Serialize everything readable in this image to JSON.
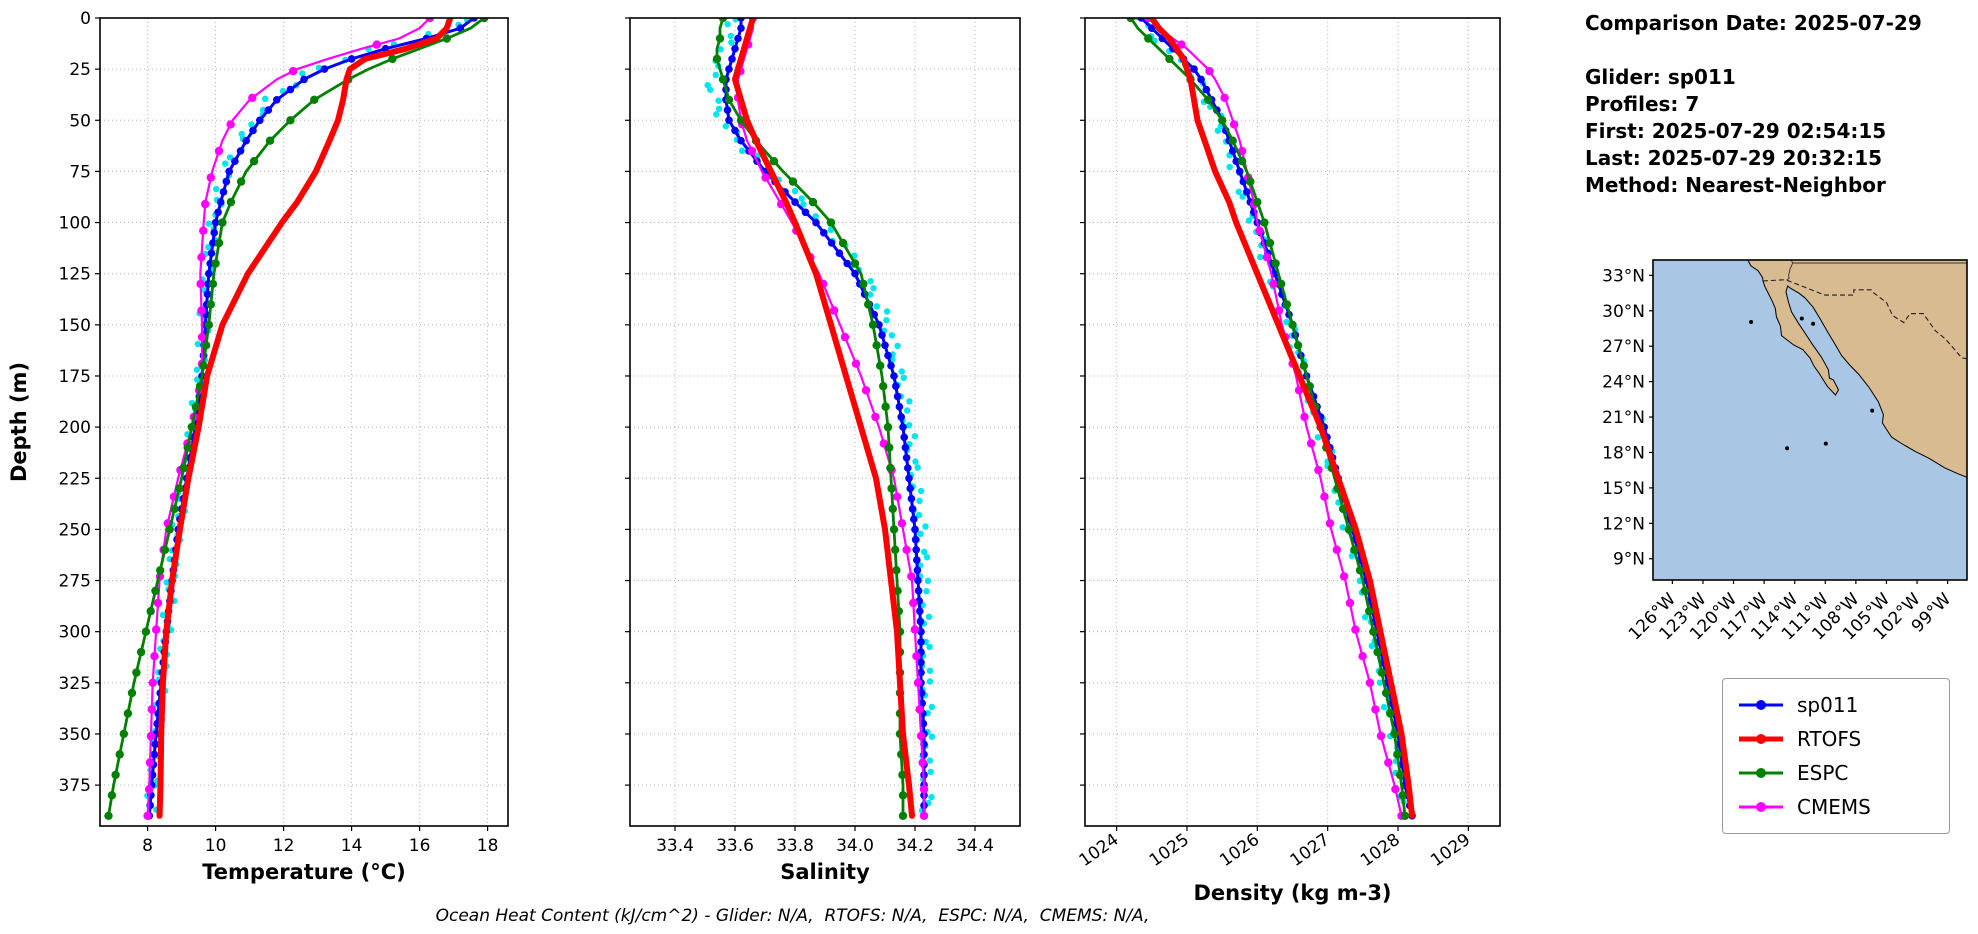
{
  "info": {
    "comparison_date": "Comparison Date: 2025-07-29",
    "glider": "Glider: sp011",
    "profiles": "Profiles: 7",
    "first": "First: 2025-07-29 02:54:15",
    "last": "Last: 2025-07-29 20:32:15",
    "method": "Method: Nearest-Neighbor"
  },
  "footer": {
    "text": "Ocean Heat Content (kJ/cm^2) - Glider: N/A,  RTOFS: N/A,  ESPC: N/A,  CMEMS: N/A,"
  },
  "legend": {
    "entries": [
      {
        "label": "sp011",
        "color": "#0000ff"
      },
      {
        "label": "RTOFS",
        "color": "#ff0000"
      },
      {
        "label": "ESPC",
        "color": "#008000"
      },
      {
        "label": "CMEMS",
        "color": "#ff00ff"
      }
    ]
  },
  "profile_axis": {
    "ylabel": "Depth (m)",
    "ylim": [
      0,
      395
    ],
    "yticks": [
      0,
      25,
      50,
      75,
      100,
      125,
      150,
      175,
      200,
      225,
      250,
      275,
      300,
      325,
      350,
      375
    ],
    "ytick_labels": [
      "0",
      "25",
      "50",
      "75",
      "100",
      "125",
      "150",
      "175",
      "200",
      "225",
      "250",
      "275",
      "300",
      "325",
      "350",
      "375"
    ],
    "depths": [
      0,
      5,
      10,
      15,
      20,
      25,
      30,
      40,
      50,
      60,
      75,
      90,
      100,
      125,
      150,
      175,
      200,
      225,
      250,
      275,
      300,
      325,
      350,
      375,
      390
    ]
  },
  "series_styles": [
    {
      "key": "glider_obs",
      "name": "glider-scatter",
      "color": "#00e5ee",
      "line_width": 0,
      "marker_radius": 3.2,
      "marker_step": 4,
      "jitter": 5
    },
    {
      "key": "sp011",
      "name": "sp011",
      "color": "#0000ff",
      "line_width": 3,
      "marker_radius": 3.8,
      "marker_step": 5,
      "jitter": 0
    },
    {
      "key": "cmems",
      "name": "CMEMS",
      "color": "#ff00ff",
      "line_width": 2.2,
      "marker_radius": 4.2,
      "marker_step": 13,
      "jitter": 0
    },
    {
      "key": "espc",
      "name": "ESPC",
      "color": "#008000",
      "line_width": 2.8,
      "marker_radius": 4.2,
      "marker_step": 10,
      "jitter": 0
    },
    {
      "key": "rtofs",
      "name": "RTOFS",
      "color": "#ff0000",
      "line_width": 6,
      "marker_radius": 0,
      "marker_step": 0,
      "jitter": 0
    }
  ],
  "chart_data": [
    {
      "type": "line",
      "id": "temperature",
      "title": "",
      "xlabel": "Temperature (°C)",
      "xlim": [
        6.6,
        18.6
      ],
      "xticks": [
        8,
        10,
        12,
        14,
        16,
        18
      ],
      "xtick_labels": [
        "8",
        "10",
        "12",
        "14",
        "16",
        "18"
      ],
      "xtick_rotation": 0,
      "series": {
        "glider_obs": [
          17.4,
          16.9,
          15.9,
          14.6,
          13.7,
          13.0,
          12.4,
          11.6,
          11.15,
          10.75,
          10.3,
          10.05,
          9.95,
          9.75,
          9.65,
          9.55,
          9.35,
          9.1,
          8.85,
          8.7,
          8.55,
          8.4,
          8.25,
          8.15,
          8.1
        ],
        "sp011": [
          17.6,
          17.2,
          16.2,
          15.0,
          14.0,
          13.2,
          12.6,
          11.8,
          11.3,
          10.9,
          10.4,
          10.15,
          10.0,
          9.8,
          9.7,
          9.6,
          9.4,
          9.15,
          8.9,
          8.72,
          8.55,
          8.4,
          8.25,
          8.12,
          8.05
        ],
        "cmems": [
          16.3,
          16.0,
          15.4,
          14.3,
          13.3,
          12.4,
          11.8,
          11.0,
          10.5,
          10.2,
          9.9,
          9.7,
          9.65,
          9.55,
          9.6,
          9.6,
          9.3,
          8.9,
          8.55,
          8.35,
          8.25,
          8.15,
          8.1,
          8.05,
          8.0
        ],
        "espc": [
          17.9,
          17.5,
          16.8,
          16.0,
          15.2,
          14.5,
          13.9,
          12.9,
          12.2,
          11.6,
          10.9,
          10.45,
          10.2,
          9.95,
          9.8,
          9.6,
          9.3,
          9.0,
          8.65,
          8.3,
          7.95,
          7.6,
          7.3,
          7.0,
          6.85
        ],
        "rtofs": [
          16.9,
          16.8,
          16.5,
          15.6,
          14.4,
          13.95,
          13.85,
          13.75,
          13.6,
          13.35,
          12.95,
          12.4,
          11.95,
          10.95,
          10.2,
          9.75,
          9.5,
          9.2,
          8.95,
          8.72,
          8.55,
          8.45,
          8.4,
          8.38,
          8.35
        ]
      }
    },
    {
      "type": "line",
      "id": "salinity",
      "title": "",
      "xlabel": "Salinity",
      "xlim": [
        33.25,
        34.55
      ],
      "xticks": [
        33.4,
        33.6,
        33.8,
        34.0,
        34.2,
        34.4
      ],
      "xtick_labels": [
        "33.4",
        "33.6",
        "33.8",
        "34.0",
        "34.2",
        "34.4"
      ],
      "xtick_rotation": 0,
      "series": {
        "glider_obs": [
          33.6,
          33.59,
          33.58,
          33.56,
          33.55,
          33.53,
          33.52,
          33.53,
          33.56,
          33.61,
          33.72,
          33.83,
          33.9,
          34.03,
          34.11,
          34.15,
          34.18,
          34.2,
          34.22,
          34.23,
          34.23,
          34.24,
          34.24,
          34.24,
          34.24
        ],
        "sp011": [
          33.62,
          33.62,
          33.61,
          33.6,
          33.59,
          33.58,
          33.57,
          33.57,
          33.58,
          33.62,
          33.7,
          33.8,
          33.87,
          34.0,
          34.08,
          34.13,
          34.16,
          34.18,
          34.2,
          34.21,
          34.22,
          34.22,
          34.23,
          34.23,
          34.23
        ],
        "cmems": [
          33.66,
          33.66,
          33.65,
          33.64,
          33.63,
          33.62,
          33.61,
          33.61,
          33.62,
          33.64,
          33.69,
          33.75,
          33.79,
          33.88,
          33.95,
          34.02,
          34.08,
          34.13,
          34.16,
          34.19,
          34.2,
          34.21,
          34.22,
          34.23,
          34.23
        ],
        "espc": [
          33.56,
          33.55,
          33.55,
          33.54,
          33.54,
          33.55,
          33.56,
          33.58,
          33.62,
          33.67,
          33.76,
          33.86,
          33.92,
          34.02,
          34.06,
          34.09,
          34.11,
          34.12,
          34.13,
          34.14,
          34.15,
          34.15,
          34.15,
          34.16,
          34.16
        ],
        "rtofs": [
          33.66,
          33.65,
          33.64,
          33.63,
          33.62,
          33.61,
          33.6,
          33.62,
          33.64,
          33.67,
          33.72,
          33.77,
          33.8,
          33.87,
          33.92,
          33.97,
          34.02,
          34.07,
          34.1,
          34.12,
          34.14,
          34.15,
          34.16,
          34.18,
          34.19
        ]
      }
    },
    {
      "type": "line",
      "id": "density",
      "title": "",
      "xlabel": "Density (kg m-3)",
      "xlim": [
        1023.55,
        1029.45
      ],
      "xticks": [
        1024,
        1025,
        1026,
        1027,
        1028,
        1029
      ],
      "xtick_labels": [
        "1024",
        "1025",
        "1026",
        "1027",
        "1028",
        "1029"
      ],
      "xtick_rotation": 35,
      "series": {
        "glider_obs": [
          1024.3,
          1024.4,
          1024.55,
          1024.7,
          1024.85,
          1025.05,
          1025.15,
          1025.3,
          1025.45,
          1025.55,
          1025.7,
          1025.85,
          1025.95,
          1026.2,
          1026.45,
          1026.65,
          1026.9,
          1027.1,
          1027.3,
          1027.5,
          1027.65,
          1027.8,
          1027.95,
          1028.05,
          1028.15
        ],
        "sp011": [
          1024.35,
          1024.5,
          1024.65,
          1024.8,
          1024.95,
          1025.1,
          1025.2,
          1025.35,
          1025.5,
          1025.6,
          1025.75,
          1025.9,
          1026.0,
          1026.25,
          1026.5,
          1026.7,
          1026.95,
          1027.15,
          1027.35,
          1027.55,
          1027.7,
          1027.85,
          1028.0,
          1028.1,
          1028.2
        ],
        "cmems": [
          1024.45,
          1024.6,
          1024.8,
          1025.0,
          1025.15,
          1025.3,
          1025.4,
          1025.55,
          1025.65,
          1025.75,
          1025.85,
          1025.95,
          1026.0,
          1026.2,
          1026.35,
          1026.55,
          1026.7,
          1026.9,
          1027.05,
          1027.25,
          1027.4,
          1027.6,
          1027.75,
          1027.95,
          1028.05
        ],
        "espc": [
          1024.2,
          1024.3,
          1024.45,
          1024.6,
          1024.75,
          1024.9,
          1025.05,
          1025.3,
          1025.5,
          1025.65,
          1025.85,
          1026.0,
          1026.1,
          1026.3,
          1026.5,
          1026.7,
          1026.9,
          1027.1,
          1027.3,
          1027.5,
          1027.65,
          1027.8,
          1027.95,
          1028.05,
          1028.1
        ],
        "rtofs": [
          1024.5,
          1024.6,
          1024.75,
          1024.85,
          1024.95,
          1025.0,
          1025.05,
          1025.1,
          1025.15,
          1025.25,
          1025.4,
          1025.6,
          1025.7,
          1026.0,
          1026.3,
          1026.6,
          1026.9,
          1027.15,
          1027.4,
          1027.6,
          1027.75,
          1027.9,
          1028.05,
          1028.15,
          1028.2
        ]
      }
    }
  ],
  "map": {
    "ocean_color": "#a9c6e4",
    "land_color": "#d8bb90",
    "xlim": [
      -127.9,
      -97.1
    ],
    "ylim": [
      7.2,
      34.3
    ],
    "lat_tick_values": [
      33,
      30,
      27,
      24,
      21,
      18,
      15,
      12,
      9
    ],
    "lat_tick_labels": [
      "33°N",
      "30°N",
      "27°N",
      "24°N",
      "21°N",
      "18°N",
      "15°N",
      "12°N",
      "9°N"
    ],
    "lon_tick_values": [
      -126,
      -123,
      -120,
      -117,
      -114,
      -111,
      -108,
      -105,
      -102,
      -99
    ],
    "lon_tick_labels": [
      "126°W",
      "123°W",
      "120°W",
      "117°W",
      "114°W",
      "111°W",
      "108°W",
      "105°W",
      "102°W",
      "99°W"
    ]
  }
}
